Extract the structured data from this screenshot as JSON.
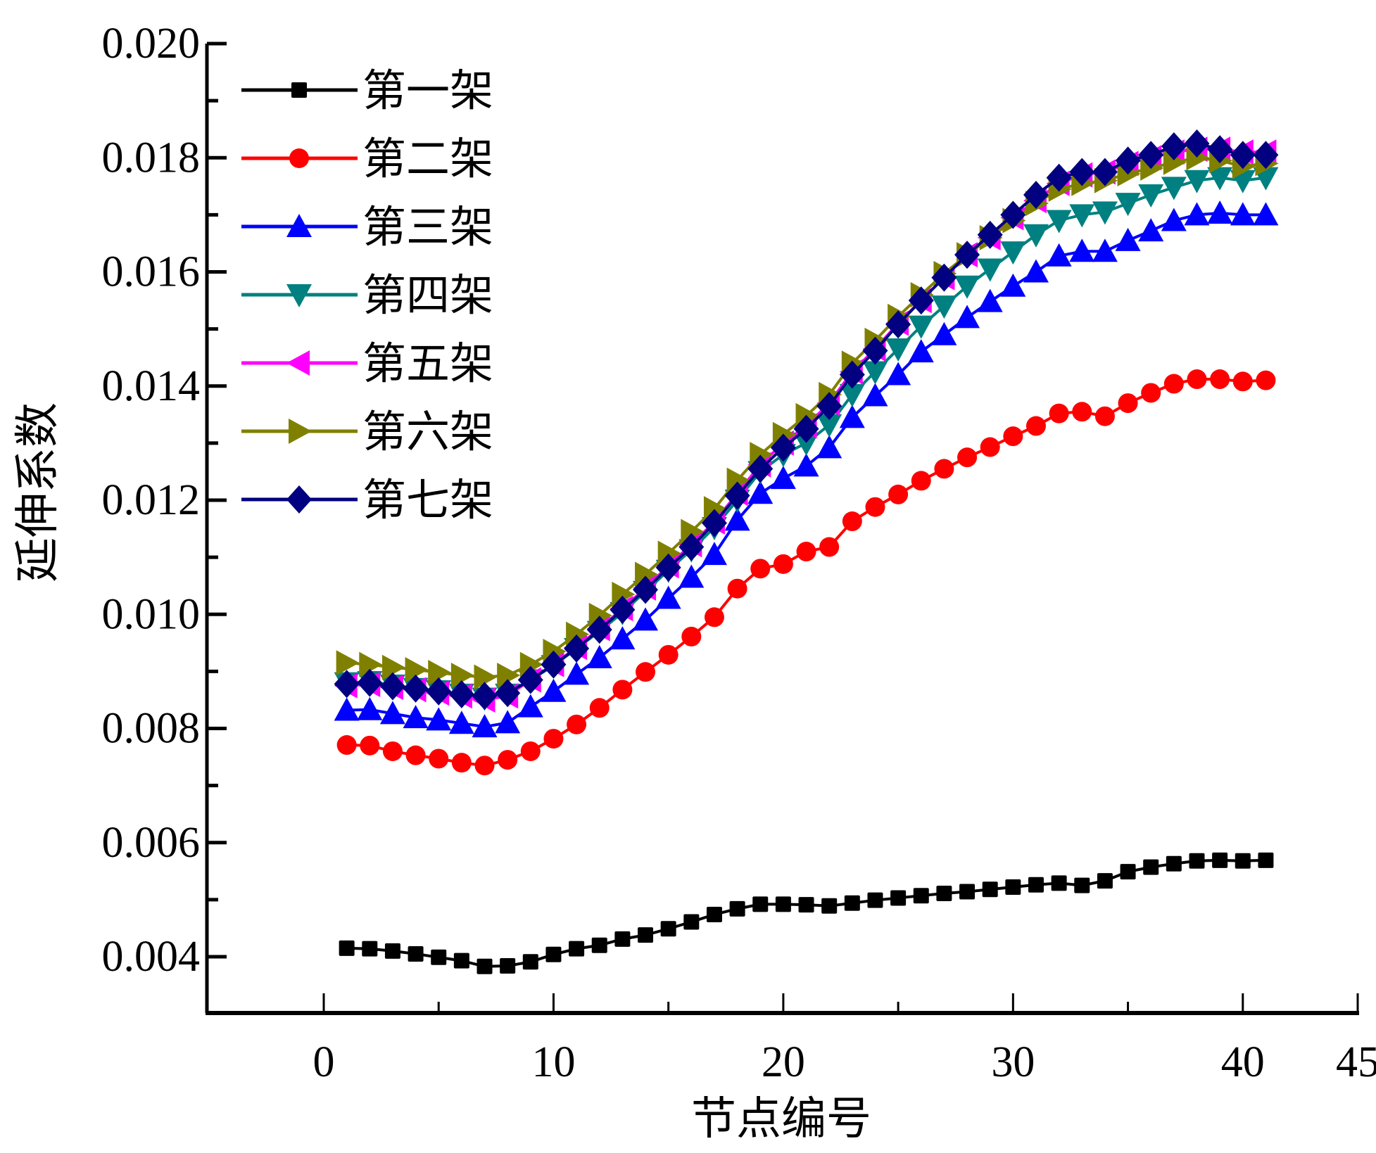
{
  "chart_data": {
    "type": "line",
    "title": "",
    "xlabel": "节点编号",
    "ylabel": "延伸系数",
    "xlim": [
      -5,
      45
    ],
    "ylim": [
      0.003,
      0.02
    ],
    "xticks": [
      0,
      10,
      20,
      30,
      40,
      45
    ],
    "xtick_labels": [
      "0",
      "10",
      "20",
      "30",
      "40",
      "45"
    ],
    "x_minor_ticks": [
      5,
      15,
      25,
      35
    ],
    "yticks": [
      0.004,
      0.006,
      0.008,
      0.01,
      0.012,
      0.014,
      0.016,
      0.018,
      0.02
    ],
    "ytick_labels": [
      "0.004",
      "0.006",
      "0.008",
      "0.010",
      "0.012",
      "0.014",
      "0.016",
      "0.018",
      "0.020"
    ],
    "y_minor_ticks": [
      0.005,
      0.007,
      0.009,
      0.011,
      0.013,
      0.015,
      0.017,
      0.019
    ],
    "grid": false,
    "legend_position": "top-left",
    "x": [
      1,
      2,
      3,
      4,
      5,
      6,
      7,
      8,
      9,
      10,
      11,
      12,
      13,
      14,
      15,
      16,
      17,
      18,
      19,
      20,
      21,
      22,
      23,
      24,
      25,
      26,
      27,
      28,
      29,
      30,
      31,
      32,
      33,
      34,
      35,
      36,
      37,
      38,
      39,
      40,
      41
    ],
    "series": [
      {
        "name": "第一架",
        "color": "#000000",
        "marker": "square",
        "values": [
          0.00415,
          0.00414,
          0.0041,
          0.00405,
          0.00399,
          0.00393,
          0.00383,
          0.00384,
          0.00391,
          0.00404,
          0.00414,
          0.0042,
          0.00431,
          0.00438,
          0.00449,
          0.00461,
          0.00474,
          0.00484,
          0.00492,
          0.00492,
          0.00491,
          0.00489,
          0.00494,
          0.00499,
          0.00503,
          0.00507,
          0.00511,
          0.00514,
          0.00518,
          0.00522,
          0.00526,
          0.00529,
          0.00525,
          0.00533,
          0.00549,
          0.00557,
          0.00563,
          0.00568,
          0.00569,
          0.00568,
          0.00569
        ]
      },
      {
        "name": "第二架",
        "color": "#ff0000",
        "marker": "circle",
        "values": [
          0.00771,
          0.0077,
          0.0076,
          0.00753,
          0.00747,
          0.0074,
          0.00735,
          0.00745,
          0.0076,
          0.00782,
          0.00807,
          0.00836,
          0.00868,
          0.00899,
          0.00929,
          0.00961,
          0.00995,
          0.01045,
          0.0108,
          0.01088,
          0.0111,
          0.01118,
          0.01163,
          0.01188,
          0.0121,
          0.01234,
          0.01255,
          0.01275,
          0.01293,
          0.01312,
          0.0133,
          0.01352,
          0.01355,
          0.01347,
          0.0137,
          0.01388,
          0.01404,
          0.01412,
          0.01412,
          0.01408,
          0.0141
        ]
      },
      {
        "name": "第三架",
        "color": "#0000ff",
        "marker": "triangle-up",
        "values": [
          0.00832,
          0.00833,
          0.00826,
          0.00819,
          0.00815,
          0.00809,
          0.00803,
          0.0081,
          0.00838,
          0.00865,
          0.00895,
          0.00924,
          0.00957,
          0.0099,
          0.01028,
          0.01065,
          0.01105,
          0.01165,
          0.01212,
          0.01238,
          0.0126,
          0.01292,
          0.01345,
          0.01383,
          0.0142,
          0.0146,
          0.0149,
          0.0152,
          0.01548,
          0.01575,
          0.016,
          0.01628,
          0.01636,
          0.01636,
          0.01655,
          0.01672,
          0.0169,
          0.017,
          0.01703,
          0.017,
          0.017
        ]
      },
      {
        "name": "第四架",
        "color": "#008080",
        "marker": "triangle-down",
        "values": [
          0.0088,
          0.00882,
          0.00876,
          0.0087,
          0.00866,
          0.0086,
          0.00853,
          0.0086,
          0.00885,
          0.0091,
          0.0094,
          0.0097,
          0.01003,
          0.0104,
          0.01077,
          0.01113,
          0.01152,
          0.012,
          0.0125,
          0.0128,
          0.013,
          0.01332,
          0.01385,
          0.01425,
          0.01465,
          0.01505,
          0.0154,
          0.01575,
          0.01605,
          0.01635,
          0.01665,
          0.0169,
          0.017,
          0.01705,
          0.0172,
          0.01735,
          0.01748,
          0.0176,
          0.01765,
          0.0176,
          0.01765
        ]
      },
      {
        "name": "第五架",
        "color": "#ff00ff",
        "marker": "triangle-left",
        "values": [
          0.00875,
          0.00877,
          0.00872,
          0.00868,
          0.00862,
          0.00857,
          0.0085,
          0.00857,
          0.00885,
          0.00912,
          0.00942,
          0.00975,
          0.0101,
          0.01046,
          0.01085,
          0.01122,
          0.01162,
          0.01212,
          0.01262,
          0.013,
          0.0133,
          0.0137,
          0.01425,
          0.01465,
          0.0151,
          0.0155,
          0.0159,
          0.0163,
          0.0166,
          0.01695,
          0.01725,
          0.01755,
          0.0177,
          0.01775,
          0.0179,
          0.018,
          0.0181,
          0.01815,
          0.01815,
          0.0181,
          0.0181
        ]
      },
      {
        "name": "第六架",
        "color": "#808000",
        "marker": "triangle-right",
        "values": [
          0.00915,
          0.00912,
          0.00907,
          0.00903,
          0.00898,
          0.00893,
          0.0089,
          0.00893,
          0.00912,
          0.00935,
          0.00965,
          0.00998,
          0.01035,
          0.0107,
          0.01107,
          0.01145,
          0.01185,
          0.01235,
          0.0128,
          0.01315,
          0.01348,
          0.01385,
          0.0144,
          0.0148,
          0.01522,
          0.0156,
          0.01597,
          0.0163,
          0.0166,
          0.0169,
          0.0172,
          0.01745,
          0.01755,
          0.0176,
          0.01772,
          0.01782,
          0.01792,
          0.018,
          0.01795,
          0.01785,
          0.0179
        ]
      },
      {
        "name": "第七架",
        "color": "#000080",
        "marker": "diamond",
        "values": [
          0.00878,
          0.0088,
          0.00874,
          0.0087,
          0.00865,
          0.0086,
          0.00857,
          0.00862,
          0.00885,
          0.00912,
          0.0094,
          0.00973,
          0.01008,
          0.01043,
          0.01082,
          0.01118,
          0.0116,
          0.01208,
          0.01255,
          0.01292,
          0.01325,
          0.01365,
          0.0142,
          0.01462,
          0.01508,
          0.0155,
          0.0159,
          0.0163,
          0.01665,
          0.017,
          0.01735,
          0.01765,
          0.01775,
          0.01775,
          0.01795,
          0.01805,
          0.0182,
          0.01825,
          0.01815,
          0.01805,
          0.01805
        ]
      }
    ]
  }
}
